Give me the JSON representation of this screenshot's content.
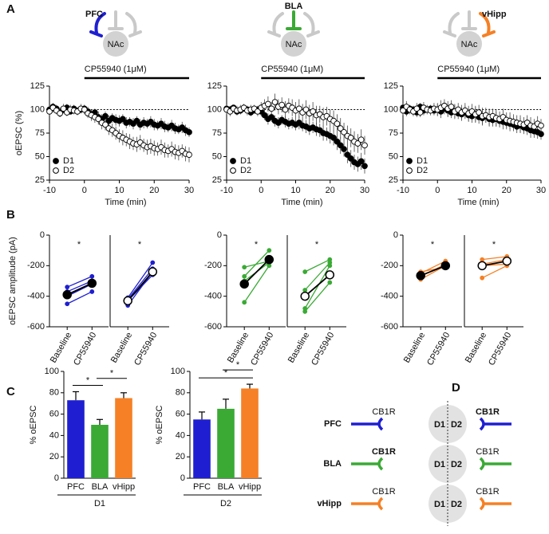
{
  "panels": [
    "A",
    "B",
    "C",
    "D"
  ],
  "circuits": [
    {
      "region": "PFC",
      "target": "NAc",
      "color": "#1f1fd1",
      "input": "left"
    },
    {
      "region": "BLA",
      "target": "NAc",
      "color": "#3aaa35",
      "input": "middle"
    },
    {
      "region": "vHipp",
      "target": "NAc",
      "color": "#f58025",
      "input": "right"
    }
  ],
  "chart_data": [
    {
      "type": "line",
      "ylabel": "oEPSC (%)",
      "xlabel": "Time (min)",
      "xlim": [
        -10,
        30
      ],
      "xticks": [
        -10,
        0,
        10,
        20,
        30
      ],
      "ylim": [
        25,
        125
      ],
      "yticks": [
        25,
        50,
        75,
        100,
        125
      ],
      "ref_line": 100,
      "legend": "lower left",
      "drug": {
        "label": "CP55940 (1μM)",
        "start": 0,
        "end": 30
      },
      "x": [
        -10,
        -9,
        -8,
        -7,
        -6,
        -5,
        -4,
        -3,
        -2,
        -1,
        0,
        1,
        2,
        3,
        4,
        5,
        6,
        7,
        8,
        9,
        10,
        11,
        12,
        13,
        14,
        15,
        16,
        17,
        18,
        19,
        20,
        21,
        22,
        23,
        24,
        25,
        26,
        27,
        28,
        29,
        30
      ],
      "series": [
        {
          "name": "D1",
          "marker": "filled",
          "values": [
            100,
            103,
            101,
            97,
            100,
            102,
            98,
            101,
            99,
            100,
            101,
            98,
            95,
            97,
            92,
            90,
            93,
            88,
            91,
            89,
            88,
            90,
            86,
            87,
            85,
            88,
            84,
            86,
            85,
            87,
            84,
            83,
            85,
            82,
            81,
            83,
            80,
            79,
            81,
            78,
            76
          ],
          "errors": [
            4,
            3,
            4,
            5,
            3,
            4,
            3,
            4,
            3,
            4,
            4,
            5,
            5,
            4,
            6,
            5,
            5,
            6,
            5,
            6,
            6,
            5,
            6,
            5,
            6,
            5,
            6,
            6,
            5,
            6,
            6,
            5,
            6,
            6,
            5,
            6,
            6,
            5,
            6,
            6,
            5
          ]
        },
        {
          "name": "D2",
          "marker": "open",
          "values": [
            98,
            102,
            99,
            96,
            101,
            97,
            100,
            99,
            98,
            101,
            100,
            96,
            94,
            92,
            90,
            86,
            84,
            80,
            78,
            75,
            72,
            70,
            68,
            66,
            64,
            63,
            65,
            62,
            60,
            61,
            59,
            58,
            60,
            57,
            56,
            58,
            55,
            54,
            56,
            53,
            52
          ],
          "errors": [
            4,
            5,
            4,
            4,
            5,
            4,
            5,
            4,
            4,
            5,
            5,
            5,
            6,
            6,
            6,
            7,
            6,
            7,
            7,
            7,
            7,
            8,
            7,
            8,
            7,
            8,
            8,
            7,
            8,
            8,
            8,
            7,
            8,
            8,
            7,
            8,
            8,
            8,
            7,
            8,
            8
          ]
        }
      ]
    },
    {
      "type": "line",
      "xlabel": "Time (min)",
      "xlim": [
        -10,
        30
      ],
      "xticks": [
        -10,
        0,
        10,
        20,
        30
      ],
      "ylim": [
        25,
        125
      ],
      "yticks": [
        25,
        50,
        75,
        100,
        125
      ],
      "ref_line": 100,
      "legend": "lower left",
      "drug": {
        "label": "CP55940 (1μM)",
        "start": 0,
        "end": 30
      },
      "x": [
        -10,
        -9,
        -8,
        -7,
        -6,
        -5,
        -4,
        -3,
        -2,
        -1,
        0,
        1,
        2,
        3,
        4,
        5,
        6,
        7,
        8,
        9,
        10,
        11,
        12,
        13,
        14,
        15,
        16,
        17,
        18,
        19,
        20,
        21,
        22,
        23,
        24,
        25,
        26,
        27,
        28,
        29,
        30
      ],
      "series": [
        {
          "name": "D1",
          "marker": "filled",
          "values": [
            101,
            100,
            102,
            98,
            99,
            101,
            100,
            97,
            99,
            100,
            98,
            94,
            90,
            92,
            88,
            86,
            89,
            87,
            85,
            86,
            84,
            86,
            83,
            82,
            80,
            81,
            79,
            78,
            75,
            74,
            72,
            70,
            66,
            62,
            58,
            52,
            48,
            44,
            42,
            45,
            40
          ],
          "errors": [
            4,
            4,
            3,
            4,
            4,
            3,
            4,
            4,
            3,
            4,
            5,
            5,
            6,
            5,
            6,
            6,
            5,
            6,
            6,
            6,
            6,
            7,
            6,
            7,
            7,
            6,
            7,
            7,
            8,
            7,
            8,
            8,
            9,
            9,
            8,
            9,
            9,
            8,
            8,
            9,
            8
          ]
        },
        {
          "name": "D2",
          "marker": "open",
          "values": [
            100,
            98,
            101,
            99,
            100,
            102,
            99,
            100,
            101,
            98,
            102,
            104,
            106,
            101,
            108,
            103,
            105,
            100,
            104,
            102,
            99,
            101,
            97,
            100,
            96,
            98,
            94,
            95,
            92,
            93,
            90,
            88,
            85,
            80,
            76,
            72,
            70,
            66,
            64,
            68,
            62
          ],
          "errors": [
            5,
            5,
            4,
            5,
            5,
            4,
            5,
            5,
            4,
            5,
            6,
            7,
            8,
            7,
            9,
            8,
            8,
            9,
            8,
            9,
            9,
            10,
            9,
            10,
            9,
            10,
            10,
            9,
            10,
            10,
            10,
            11,
            10,
            11,
            10,
            11,
            10,
            11,
            10,
            11,
            10
          ]
        }
      ]
    },
    {
      "type": "line",
      "xlabel": "Time (min)",
      "xlim": [
        -10,
        30
      ],
      "xticks": [
        -10,
        0,
        10,
        20,
        30
      ],
      "ylim": [
        25,
        125
      ],
      "yticks": [
        25,
        50,
        75,
        100,
        125
      ],
      "ref_line": 100,
      "legend": "lower left",
      "drug": {
        "label": "CP55940 (1μM)",
        "start": 0,
        "end": 30
      },
      "x": [
        -10,
        -9,
        -8,
        -7,
        -6,
        -5,
        -4,
        -3,
        -2,
        -1,
        0,
        1,
        2,
        3,
        4,
        5,
        6,
        7,
        8,
        9,
        10,
        11,
        12,
        13,
        14,
        15,
        16,
        17,
        18,
        19,
        20,
        21,
        22,
        23,
        24,
        25,
        26,
        27,
        28,
        29,
        30
      ],
      "series": [
        {
          "name": "D1",
          "marker": "filled",
          "values": [
            102,
            98,
            101,
            100,
            97,
            103,
            99,
            100,
            101,
            99,
            100,
            98,
            101,
            99,
            97,
            98,
            96,
            95,
            97,
            94,
            93,
            95,
            92,
            91,
            93,
            90,
            89,
            90,
            88,
            87,
            86,
            85,
            84,
            82,
            83,
            81,
            80,
            78,
            77,
            76,
            74
          ],
          "errors": [
            4,
            5,
            4,
            4,
            5,
            4,
            5,
            4,
            4,
            5,
            6,
            7,
            6,
            7,
            6,
            7,
            6,
            7,
            7,
            7,
            7,
            8,
            7,
            8,
            7,
            8,
            7,
            8,
            7,
            8,
            7,
            8,
            7,
            7,
            8,
            7,
            7,
            8,
            7,
            7,
            6
          ]
        },
        {
          "name": "D2",
          "marker": "open",
          "values": [
            99,
            103,
            100,
            98,
            101,
            97,
            102,
            100,
            99,
            101,
            100,
            102,
            104,
            101,
            103,
            98,
            100,
            97,
            99,
            96,
            98,
            95,
            97,
            93,
            94,
            92,
            93,
            91,
            90,
            92,
            89,
            88,
            87,
            86,
            85,
            84,
            86,
            83,
            82,
            85,
            83
          ],
          "errors": [
            5,
            6,
            5,
            5,
            6,
            5,
            6,
            5,
            5,
            6,
            7,
            8,
            7,
            8,
            7,
            8,
            7,
            8,
            8,
            8,
            8,
            9,
            8,
            9,
            8,
            9,
            8,
            9,
            8,
            9,
            8,
            9,
            8,
            8,
            9,
            8,
            8,
            9,
            8,
            8,
            7
          ]
        }
      ]
    },
    {
      "type": "paired",
      "ylabel": "oEPSC amplitude (pA)",
      "annotation": "*",
      "categories": [
        "Baseline",
        "CP55940"
      ],
      "ylim": [
        -600,
        0
      ],
      "yticks": [
        -600,
        -400,
        -200,
        0
      ],
      "series": [
        {
          "color": "#1f1fd1",
          "values": [
            -450,
            -370
          ]
        },
        {
          "color": "#1f1fd1",
          "values": [
            -400,
            -320
          ]
        },
        {
          "color": "#1f1fd1",
          "values": [
            -370,
            -300
          ]
        },
        {
          "color": "#1f1fd1",
          "values": [
            -340,
            -270
          ]
        },
        {
          "color": "#000000",
          "marker": "filled",
          "values": [
            -390,
            -315
          ]
        }
      ]
    },
    {
      "type": "paired",
      "annotation": "*",
      "categories": [
        "Baseline",
        "CP55940"
      ],
      "ylim": [
        -600,
        0
      ],
      "series": [
        {
          "color": "#1f1fd1",
          "values": [
            -460,
            -240
          ]
        },
        {
          "color": "#1f1fd1",
          "values": [
            -430,
            -260
          ]
        },
        {
          "color": "#1f1fd1",
          "values": [
            -420,
            -220
          ]
        },
        {
          "color": "#1f1fd1",
          "values": [
            -410,
            -180
          ]
        },
        {
          "color": "#000000",
          "marker": "open",
          "values": [
            -430,
            -240
          ]
        }
      ]
    },
    {
      "type": "paired",
      "annotation": "*",
      "categories": [
        "Baseline",
        "CP55940"
      ],
      "ylim": [
        -600,
        0
      ],
      "yticks": [
        -600,
        -400,
        -200,
        0
      ],
      "series": [
        {
          "color": "#3aaa35",
          "values": [
            -440,
            -200
          ]
        },
        {
          "color": "#3aaa35",
          "values": [
            -300,
            -180
          ]
        },
        {
          "color": "#3aaa35",
          "values": [
            -270,
            -100
          ]
        },
        {
          "color": "#3aaa35",
          "values": [
            -210,
            -170
          ]
        },
        {
          "color": "#000000",
          "marker": "filled",
          "values": [
            -320,
            -160
          ]
        }
      ]
    },
    {
      "type": "paired",
      "annotation": "*",
      "categories": [
        "Baseline",
        "CP55940"
      ],
      "ylim": [
        -600,
        0
      ],
      "series": [
        {
          "color": "#3aaa35",
          "values": [
            -500,
            -310
          ]
        },
        {
          "color": "#3aaa35",
          "values": [
            -480,
            -200
          ]
        },
        {
          "color": "#3aaa35",
          "values": [
            -360,
            -180
          ]
        },
        {
          "color": "#3aaa35",
          "values": [
            -240,
            -160
          ]
        },
        {
          "color": "#000000",
          "marker": "open",
          "values": [
            -400,
            -260
          ]
        }
      ]
    },
    {
      "type": "paired",
      "annotation": "*",
      "categories": [
        "Baseline",
        "CP55940"
      ],
      "ylim": [
        -600,
        0
      ],
      "yticks": [
        -600,
        -400,
        -200,
        0
      ],
      "series": [
        {
          "color": "#f58025",
          "values": [
            -290,
            -200
          ]
        },
        {
          "color": "#f58025",
          "values": [
            -270,
            -190
          ]
        },
        {
          "color": "#f58025",
          "values": [
            -250,
            -170
          ]
        },
        {
          "color": "#f58025",
          "values": [
            -240,
            -210
          ]
        },
        {
          "color": "#000000",
          "marker": "filled",
          "values": [
            -265,
            -200
          ]
        }
      ]
    },
    {
      "type": "paired",
      "annotation": "*",
      "categories": [
        "Baseline",
        "CP55940"
      ],
      "ylim": [
        -600,
        0
      ],
      "series": [
        {
          "color": "#f58025",
          "values": [
            -280,
            -200
          ]
        },
        {
          "color": "#f58025",
          "values": [
            -200,
            -190
          ]
        },
        {
          "color": "#f58025",
          "values": [
            -190,
            -160
          ]
        },
        {
          "color": "#f58025",
          "values": [
            -160,
            -140
          ]
        },
        {
          "color": "#000000",
          "marker": "open",
          "values": [
            -200,
            -170
          ]
        }
      ]
    },
    {
      "type": "bar",
      "ylabel": "% oEPSC",
      "xlabel": "D1",
      "categories": [
        "PFC",
        "BLA",
        "vHipp"
      ],
      "colors": [
        "#1f1fd1",
        "#3aaa35",
        "#f58025"
      ],
      "values": [
        73,
        50,
        75
      ],
      "errors": [
        8,
        5,
        5
      ],
      "ylim": [
        0,
        100
      ],
      "yticks": [
        0,
        20,
        40,
        60,
        80,
        100
      ],
      "significance": [
        {
          "pair": [
            0,
            1
          ],
          "label": "*"
        },
        {
          "pair": [
            1,
            2
          ],
          "label": "*"
        }
      ]
    },
    {
      "type": "bar",
      "ylabel": "% oEPSC",
      "xlabel": "D2",
      "categories": [
        "PFC",
        "BLA",
        "vHipp"
      ],
      "colors": [
        "#1f1fd1",
        "#3aaa35",
        "#f58025"
      ],
      "values": [
        55,
        65,
        84
      ],
      "errors": [
        7,
        9,
        4
      ],
      "ylim": [
        0,
        100
      ],
      "yticks": [
        0,
        20,
        40,
        60,
        80,
        100
      ],
      "significance": [
        {
          "pair": [
            0,
            2
          ],
          "label": "*"
        },
        {
          "pair": [
            1,
            2
          ],
          "label": "*"
        }
      ]
    }
  ],
  "diagram": {
    "d1_color": "#e02020",
    "d2_color": "#888888",
    "rows": [
      {
        "region": "PFC",
        "color": "#1f1fd1",
        "cb1r_left": "CB1R",
        "cb1r_right": "CB1R",
        "d1": "D1",
        "d2": "D2",
        "strong": "right"
      },
      {
        "region": "BLA",
        "color": "#3aaa35",
        "cb1r_left": "CB1R",
        "cb1r_right": "CB1R",
        "d1": "D1",
        "d2": "D2",
        "strong": "left"
      },
      {
        "region": "vHipp",
        "color": "#f58025",
        "cb1r_left": "CB1R",
        "cb1r_right": "CB1R",
        "d1": "D1",
        "d2": "D2"
      }
    ]
  }
}
